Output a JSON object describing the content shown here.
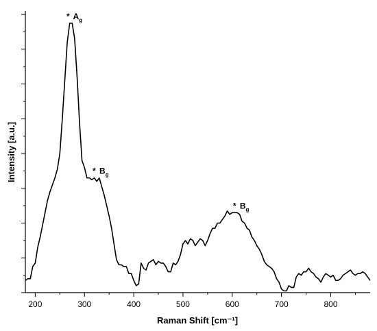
{
  "chart_data": {
    "type": "line",
    "title": "",
    "xlabel": "Raman Shift [cm⁻¹]",
    "ylabel": "Intensity [a.u.]",
    "xlim": [
      180,
      880
    ],
    "ylim": [
      0,
      8.1
    ],
    "x_ticks": [
      200,
      300,
      400,
      500,
      600,
      700,
      800
    ],
    "y_ticks": [
      0,
      1,
      2,
      3,
      4,
      5,
      6,
      7,
      8
    ],
    "y_tick_labels_shown": false,
    "grid": false,
    "legend": "none",
    "line_color": "#000000",
    "series": [
      {
        "x": [
          180,
          185,
          190,
          195,
          200,
          205,
          210,
          215,
          220,
          225,
          230,
          235,
          240,
          245,
          250,
          255,
          260,
          265,
          270,
          275,
          280,
          285,
          290,
          295,
          300,
          305,
          310,
          315,
          320,
          325,
          330,
          335,
          340,
          345,
          350,
          355,
          360,
          365,
          370,
          375,
          380,
          385,
          390,
          395,
          400,
          405,
          410,
          415,
          420,
          425,
          430,
          435,
          440,
          445,
          450,
          455,
          460,
          465,
          470,
          475,
          480,
          485,
          490,
          495,
          500,
          505,
          510,
          515,
          520,
          525,
          530,
          535,
          540,
          545,
          550,
          555,
          560,
          565,
          570,
          575,
          580,
          585,
          590,
          595,
          600,
          605,
          610,
          615,
          620,
          625,
          630,
          635,
          640,
          645,
          650,
          655,
          660,
          665,
          670,
          675,
          680,
          685,
          690,
          695,
          700,
          705,
          710,
          715,
          720,
          725,
          730,
          735,
          740,
          745,
          750,
          755,
          760,
          765,
          770,
          775,
          780,
          785,
          790,
          795,
          800,
          805,
          810,
          815,
          820,
          825,
          830,
          835,
          840,
          845,
          850,
          855,
          860,
          865,
          870,
          875,
          880
        ],
        "y": [
          0.35,
          0.4,
          0.4,
          0.75,
          0.85,
          1.3,
          1.6,
          1.95,
          2.3,
          2.65,
          2.9,
          3.1,
          3.3,
          3.55,
          4.0,
          5.0,
          6.1,
          7.2,
          7.75,
          7.75,
          7.3,
          6.2,
          4.9,
          3.8,
          3.6,
          3.3,
          3.3,
          3.25,
          3.3,
          3.2,
          3.3,
          3.05,
          2.8,
          2.5,
          2.2,
          1.85,
          1.4,
          0.95,
          0.8,
          0.8,
          0.75,
          0.75,
          0.55,
          0.55,
          0.35,
          0.2,
          0.25,
          0.85,
          0.7,
          0.65,
          0.85,
          0.9,
          0.95,
          0.8,
          0.9,
          0.85,
          0.85,
          0.75,
          0.6,
          0.6,
          0.85,
          0.8,
          0.9,
          1.1,
          1.4,
          1.5,
          1.4,
          1.55,
          1.5,
          1.35,
          1.45,
          1.55,
          1.5,
          1.35,
          1.5,
          1.7,
          1.85,
          1.85,
          2.0,
          2.0,
          2.1,
          2.2,
          2.35,
          2.25,
          2.3,
          2.3,
          2.3,
          2.25,
          2.05,
          2.0,
          1.85,
          1.8,
          1.6,
          1.5,
          1.35,
          1.25,
          1.1,
          0.9,
          0.8,
          0.75,
          0.7,
          0.6,
          0.4,
          0.3,
          0.1,
          0.05,
          0.05,
          0.2,
          0.15,
          0.15,
          0.45,
          0.55,
          0.5,
          0.6,
          0.6,
          0.7,
          0.6,
          0.55,
          0.45,
          0.4,
          0.3,
          0.45,
          0.55,
          0.5,
          0.45,
          0.5,
          0.35,
          0.35,
          0.4,
          0.5,
          0.55,
          0.6,
          0.65,
          0.55,
          0.5,
          0.55,
          0.55,
          0.6,
          0.55,
          0.45,
          0.35
        ]
      }
    ],
    "annotations": [
      {
        "star": "*",
        "label": "A",
        "sub": "g",
        "x": 269,
        "y": 7.75
      },
      {
        "star": "*",
        "label": "B",
        "sub": "g",
        "x": 322,
        "y": 3.3
      },
      {
        "star": "*",
        "label": "B",
        "sub": "g",
        "x": 607,
        "y": 2.3
      }
    ]
  }
}
